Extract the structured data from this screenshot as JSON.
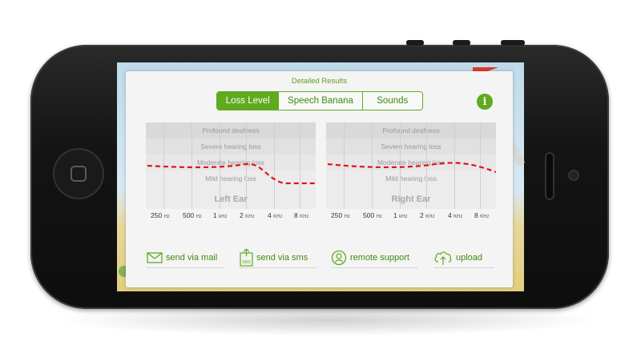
{
  "dialog": {
    "title": "Detailed Results"
  },
  "tabs": [
    {
      "label": "Loss Level",
      "active": true
    },
    {
      "label": "Speech Banana",
      "active": false
    },
    {
      "label": "Sounds",
      "active": false
    }
  ],
  "info_button": {
    "icon": "info-icon",
    "glyph": "i"
  },
  "bands": [
    "Profound deafness",
    "Severe hearing loss",
    "Moderate hearing loss",
    "Mild hearing loss"
  ],
  "charts": [
    {
      "ear": "Left Ear"
    },
    {
      "ear": "Right Ear"
    }
  ],
  "frequencies": [
    {
      "value": "250",
      "unit": "Hz"
    },
    {
      "value": "500",
      "unit": "Hz"
    },
    {
      "value": "1",
      "unit": "kHz"
    },
    {
      "value": "2",
      "unit": "KHz"
    },
    {
      "value": "4",
      "unit": "KHz"
    },
    {
      "value": "8",
      "unit": "KHz"
    }
  ],
  "actions": [
    {
      "label": "send via mail",
      "icon": "mail-icon"
    },
    {
      "label": "send via sms",
      "icon": "sms-icon",
      "icon_text": "SMS"
    },
    {
      "label": "remote support",
      "icon": "support-icon"
    },
    {
      "label": "upload",
      "icon": "upload-icon"
    }
  ],
  "colors": {
    "accent": "#5faa1e",
    "curve": "#e01414",
    "dialog_bg": "#f4f4f4"
  }
}
